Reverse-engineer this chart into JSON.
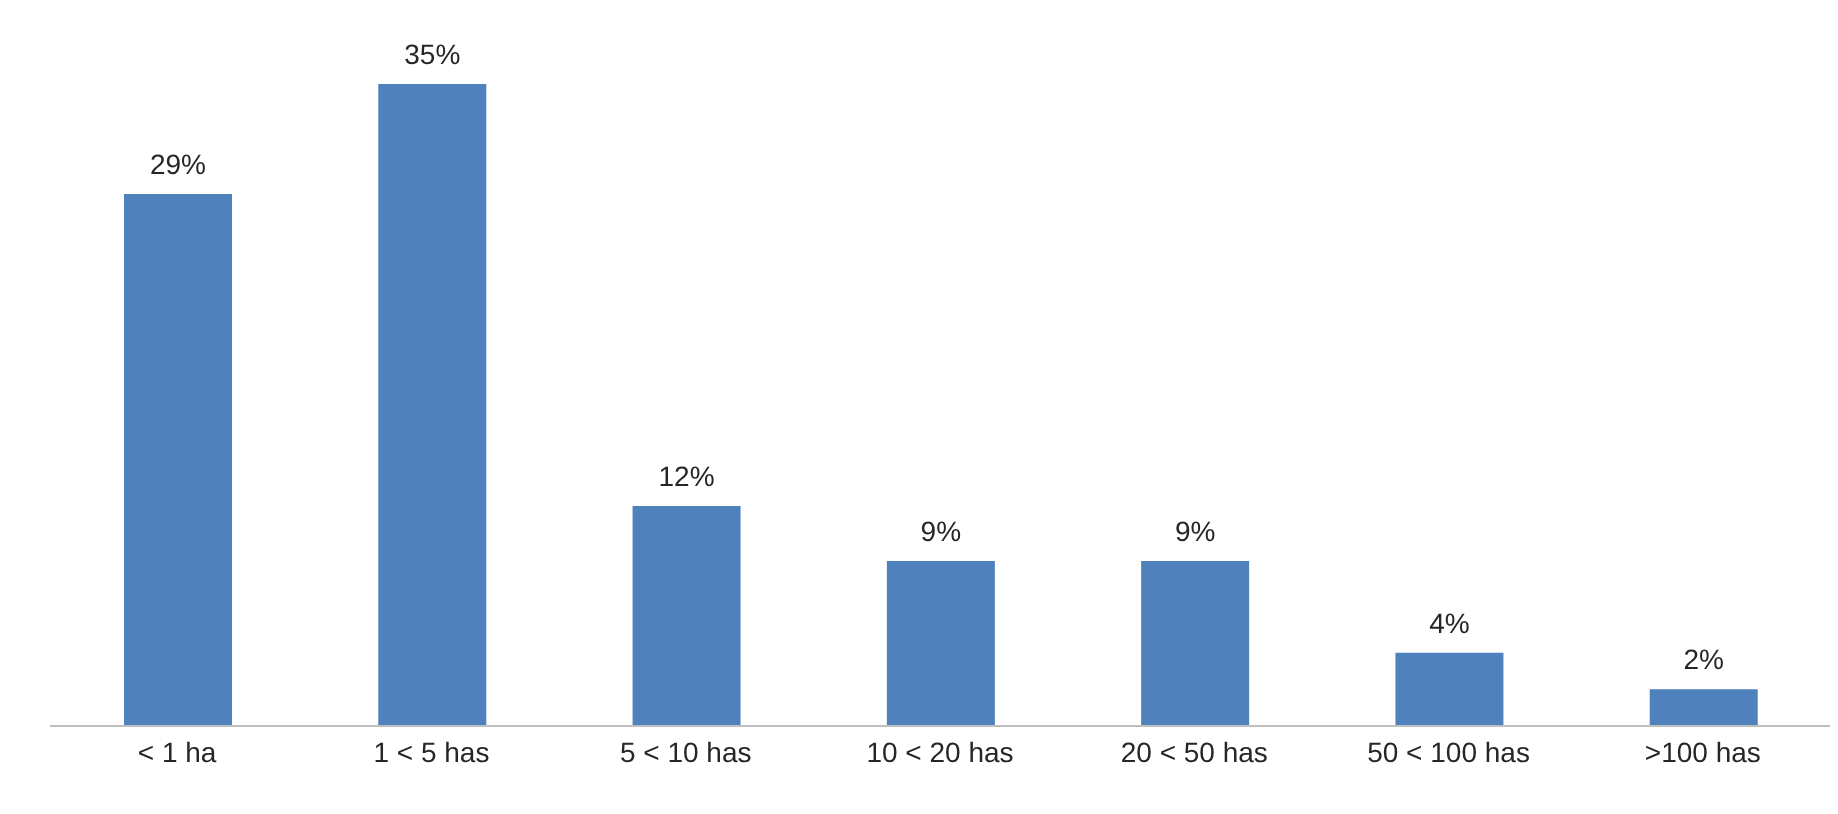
{
  "chart_data": {
    "type": "bar",
    "categories": [
      "< 1 ha",
      "1 < 5 has",
      "5 < 10 has",
      "10 < 20 has",
      "20 < 50 has",
      "50 < 100 has",
      ">100 has"
    ],
    "values": [
      29,
      35,
      12,
      9,
      9,
      4,
      2
    ],
    "value_labels": [
      "29%",
      "35%",
      "12%",
      "9%",
      "9%",
      "4%",
      "2%"
    ],
    "color": "#4f81bd"
  }
}
